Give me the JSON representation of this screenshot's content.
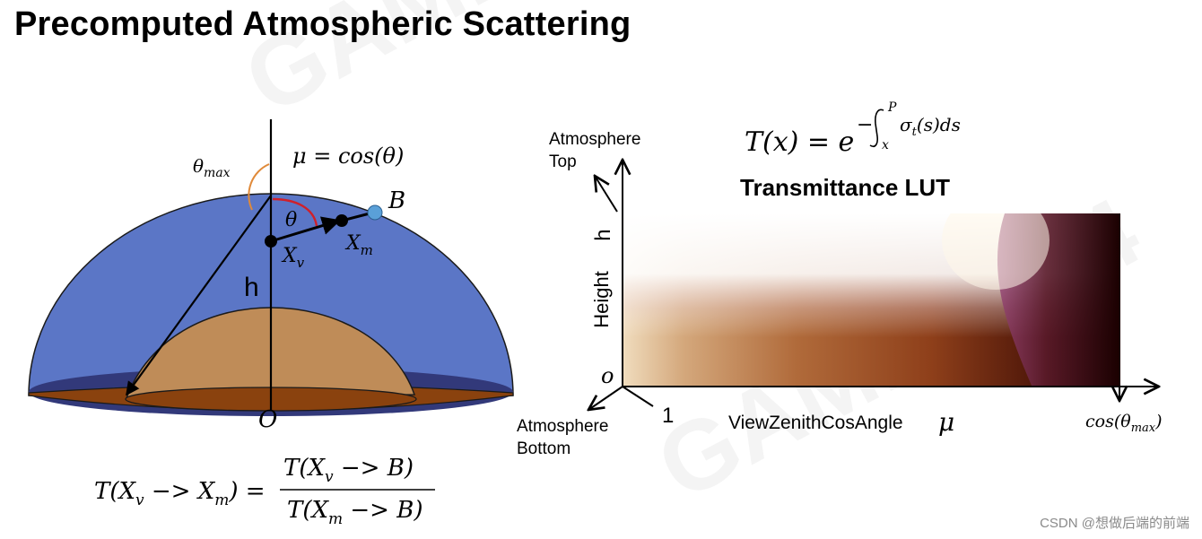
{
  "title": "Precomputed Atmospheric Scattering",
  "left_diagram": {
    "theta_max_label": "θ",
    "theta_max_sub": "max",
    "mu_eq": "μ = cos(θ)",
    "theta_label": "θ",
    "point_b": "B",
    "point_xv": "X",
    "point_xv_sub": "v",
    "point_xm": "X",
    "point_xm_sub": "m",
    "h_label": "h",
    "origin_label": "O",
    "formula": {
      "lhs": "T(X",
      "lhs_sub1": "v",
      "lhs_mid": " −> X",
      "lhs_sub2": "m",
      "lhs_end": ") =",
      "num": "T(X",
      "num_sub": "v",
      "num_end": " −> B)",
      "den": "T(X",
      "den_sub": "m",
      "den_end": " −> B)"
    },
    "colors": {
      "atmosphere": "#5b76c6",
      "earth_dome": "#bf8c58",
      "ground": "#8a420e",
      "ring": "#32397a",
      "point_b": "#5aa0d8"
    }
  },
  "right_diagram": {
    "transmittance_eq": {
      "lhs": "T(x) = e",
      "exp_minus": "−",
      "int_upper": "P",
      "int_lower": "x",
      "integrand": "σ",
      "integrand_sub": "t",
      "integrand_end": "(s)ds"
    },
    "lut_title": "Transmittance LUT",
    "atmosphere_top_1": "Atmosphere",
    "atmosphere_top_2": "Top",
    "atmosphere_bottom_1": "Atmosphere",
    "atmosphere_bottom_2": "Bottom",
    "axis_h": "h",
    "axis_height": "Height",
    "axis_origin": "o",
    "axis_one": "1",
    "axis_view": "ViewZenithCosAngle",
    "axis_mu": "μ",
    "axis_cos_max": "cos(θ",
    "axis_cos_max_sub": "max",
    "axis_cos_max_end": ")"
  },
  "credit": "CSDN @想做后端的前端"
}
